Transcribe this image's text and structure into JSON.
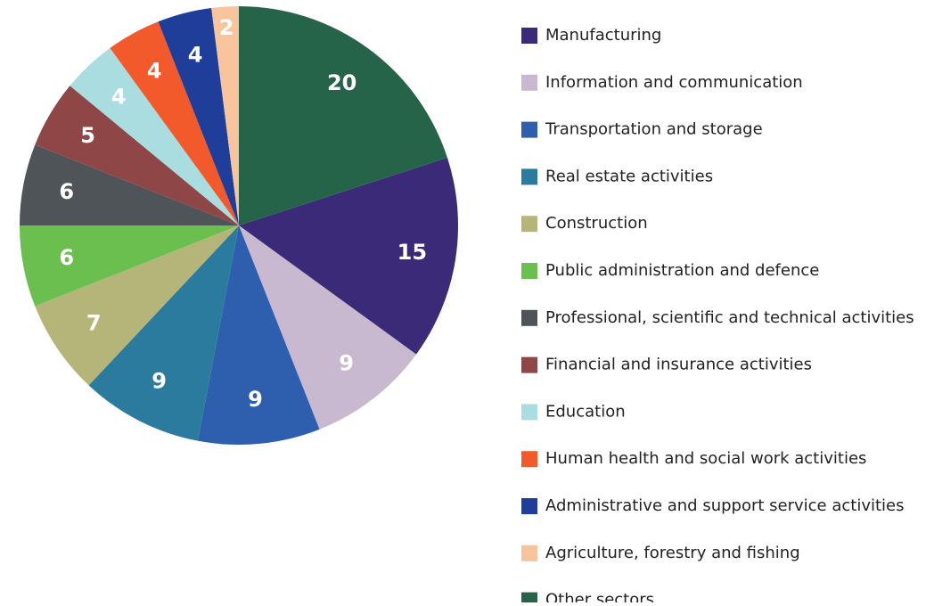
{
  "chart_data": {
    "type": "pie",
    "categories": [
      "Manufacturing",
      "Information and communication",
      "Transportation and storage",
      "Real estate activities",
      "Construction",
      "Public administration and defence",
      "Professional, scientific and technical activities",
      "Financial and insurance activities",
      "Education",
      "Human health and social work activities",
      "Administrative and support service activities",
      "Agriculture, forestry and fishing",
      "Other sectors"
    ],
    "values": [
      15,
      9,
      9,
      9,
      7,
      6,
      6,
      5,
      4,
      4,
      4,
      2,
      20
    ],
    "colors": [
      "#3a2a78",
      "#c8b9d0",
      "#2d5fae",
      "#2b7b9e",
      "#b5b57a",
      "#6abf4f",
      "#4f5458",
      "#8e4646",
      "#a9dde0",
      "#f25a2c",
      "#1f3e9a",
      "#f8c49c",
      "#26644a"
    ],
    "legend": "right"
  }
}
